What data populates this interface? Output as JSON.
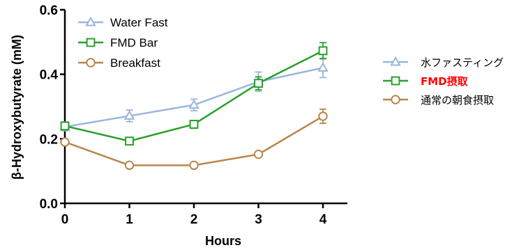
{
  "chart_data": {
    "type": "line",
    "xlabel": "Hours",
    "ylabel": "β-Hydroxybutyrate (mM)",
    "x": [
      0,
      1,
      2,
      3,
      4
    ],
    "xlim": [
      0,
      4.35
    ],
    "ylim": [
      0,
      0.6
    ],
    "yticks": [
      "0.0",
      "0.2",
      "0.4",
      "0.6"
    ],
    "xticks": [
      "0",
      "1",
      "2",
      "3",
      "4"
    ],
    "grid": false,
    "series": [
      {
        "name": "Water Fast",
        "name_jp": "水ファスティング",
        "color": "#9bb5da",
        "marker": "triangle",
        "values": [
          0.237,
          0.271,
          0.305,
          0.377,
          0.42
        ],
        "errors": [
          0.012,
          0.018,
          0.018,
          0.03,
          0.03
        ]
      },
      {
        "name": "FMD Bar",
        "name_jp": "FMD摂取",
        "color": "#2aa02a",
        "marker": "square",
        "values": [
          0.24,
          0.193,
          0.245,
          0.372,
          0.473
        ],
        "errors": [
          0.012,
          0.006,
          0.012,
          0.02,
          0.025
        ]
      },
      {
        "name": "Breakfast",
        "name_jp": "通常の朝食摂取",
        "color": "#b8864b",
        "marker": "circle",
        "values": [
          0.19,
          0.118,
          0.118,
          0.152,
          0.27
        ],
        "errors": [
          0.006,
          0.004,
          0.004,
          0.004,
          0.022
        ]
      }
    ],
    "legend_inside": "top-left",
    "legend_outside": "right",
    "legend_outside_highlight": "FMD摂取",
    "highlight_color": "#ff0000"
  }
}
